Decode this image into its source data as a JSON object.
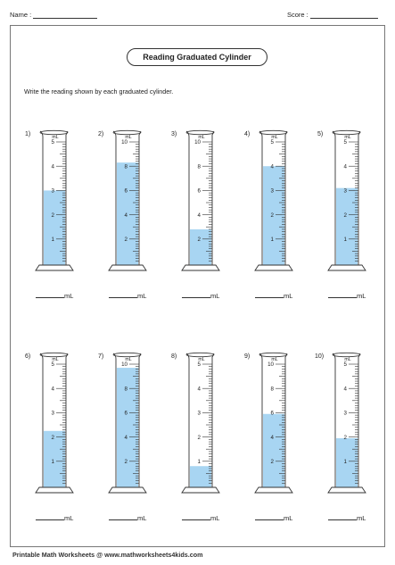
{
  "header": {
    "name_label": "Name :",
    "score_label": "Score :"
  },
  "title": "Reading Graduated Cylinder",
  "instruction": "Write the reading shown by each graduated cylinder.",
  "unit_label": "mL",
  "answer_unit": "mL",
  "footer": "Printable Math Worksheets @ www.mathworksheets4kids.com",
  "colors": {
    "liquid": "#a8d5f2",
    "outline": "#333333"
  },
  "cylinders": [
    {
      "number": "1)",
      "max": 5,
      "labels": [
        "1",
        "2",
        "3",
        "4",
        "5"
      ],
      "fill_fraction": 0.6
    },
    {
      "number": "2)",
      "max": 10,
      "labels": [
        "2",
        "4",
        "6",
        "8",
        "10"
      ],
      "fill_fraction": 0.83
    },
    {
      "number": "3)",
      "max": 10,
      "labels": [
        "2",
        "4",
        "6",
        "8",
        "10"
      ],
      "fill_fraction": 0.28
    },
    {
      "number": "4)",
      "max": 5,
      "labels": [
        "1",
        "2",
        "3",
        "4",
        "5"
      ],
      "fill_fraction": 0.8
    },
    {
      "number": "5)",
      "max": 5,
      "labels": [
        "1",
        "2",
        "3",
        "4",
        "5"
      ],
      "fill_fraction": 0.62
    },
    {
      "number": "6)",
      "max": 5,
      "labels": [
        "1",
        "2",
        "3",
        "4",
        "5"
      ],
      "fill_fraction": 0.45
    },
    {
      "number": "7)",
      "max": 10,
      "labels": [
        "2",
        "4",
        "6",
        "8",
        "10"
      ],
      "fill_fraction": 0.97
    },
    {
      "number": "8)",
      "max": 5,
      "labels": [
        "1",
        "2",
        "3",
        "4",
        "5"
      ],
      "fill_fraction": 0.16
    },
    {
      "number": "9)",
      "max": 10,
      "labels": [
        "2",
        "4",
        "6",
        "8",
        "10"
      ],
      "fill_fraction": 0.59
    },
    {
      "number": "10)",
      "max": 5,
      "labels": [
        "1",
        "2",
        "3",
        "4",
        "5"
      ],
      "fill_fraction": 0.39
    }
  ]
}
